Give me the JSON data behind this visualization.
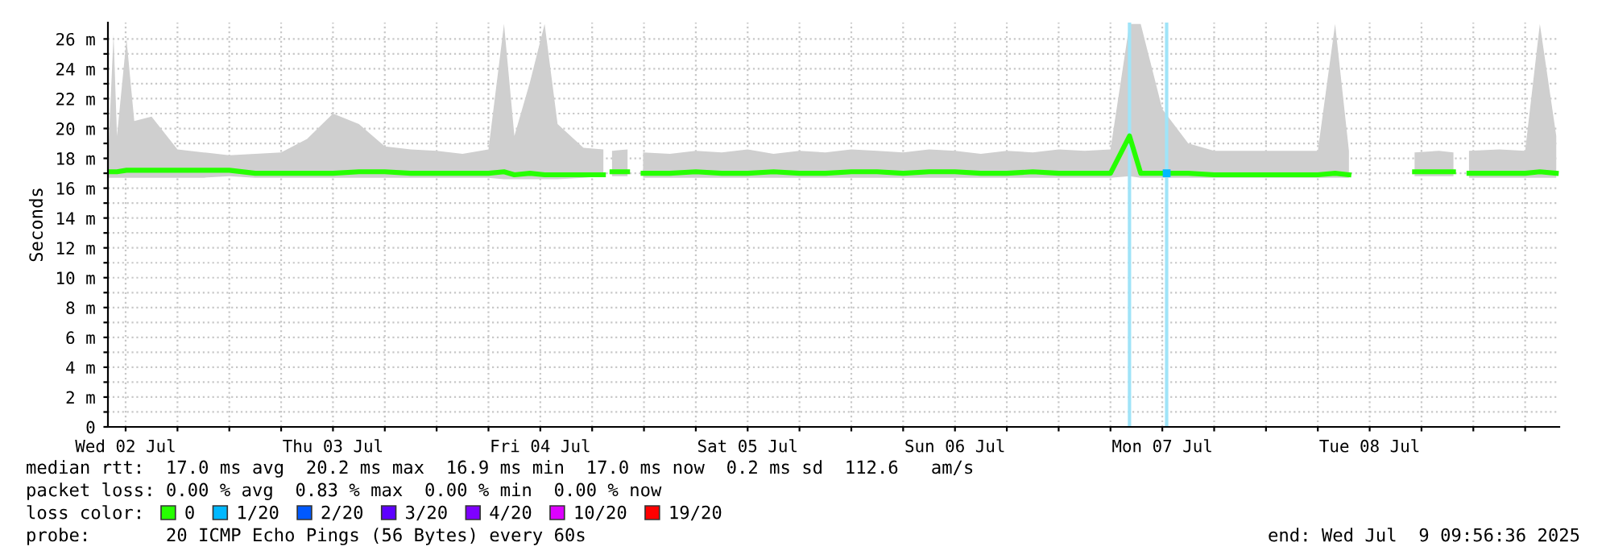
{
  "chart_data": {
    "type": "line",
    "ylabel": "Seconds",
    "xlim": [
      "2025-07-02T09:57",
      "2025-07-09T09:57"
    ],
    "ylim": [
      0,
      27.1
    ],
    "xticks": [
      {
        "value": "2025-07-02T12:00",
        "label": "Wed 02 Jul"
      },
      {
        "value": "2025-07-02T18:00",
        "label": null
      },
      {
        "value": "2025-07-03T00:00",
        "label": null
      },
      {
        "value": "2025-07-03T06:00",
        "label": null
      },
      {
        "value": "2025-07-03T12:00",
        "label": "Thu 03 Jul"
      },
      {
        "value": "2025-07-03T18:00",
        "label": null
      },
      {
        "value": "2025-07-04T00:00",
        "label": null
      },
      {
        "value": "2025-07-04T06:00",
        "label": null
      },
      {
        "value": "2025-07-04T12:00",
        "label": "Fri 04 Jul"
      },
      {
        "value": "2025-07-04T18:00",
        "label": null
      },
      {
        "value": "2025-07-05T00:00",
        "label": null
      },
      {
        "value": "2025-07-05T06:00",
        "label": null
      },
      {
        "value": "2025-07-05T12:00",
        "label": "Sat 05 Jul"
      },
      {
        "value": "2025-07-05T18:00",
        "label": null
      },
      {
        "value": "2025-07-06T00:00",
        "label": null
      },
      {
        "value": "2025-07-06T06:00",
        "label": null
      },
      {
        "value": "2025-07-06T12:00",
        "label": "Sun 06 Jul"
      },
      {
        "value": "2025-07-06T18:00",
        "label": null
      },
      {
        "value": "2025-07-07T00:00",
        "label": null
      },
      {
        "value": "2025-07-07T06:00",
        "label": null
      },
      {
        "value": "2025-07-07T12:00",
        "label": "Mon 07 Jul"
      },
      {
        "value": "2025-07-07T18:00",
        "label": null
      },
      {
        "value": "2025-07-08T00:00",
        "label": null
      },
      {
        "value": "2025-07-08T06:00",
        "label": null
      },
      {
        "value": "2025-07-08T12:00",
        "label": "Tue 08 Jul"
      },
      {
        "value": "2025-07-08T18:00",
        "label": null
      },
      {
        "value": "2025-07-09T00:00",
        "label": null
      },
      {
        "value": "2025-07-09T06:00",
        "label": null
      }
    ],
    "yticks": [
      0,
      {
        "value": 1,
        "label": null
      },
      {
        "value": 2,
        "label": "2 m"
      },
      {
        "value": 3,
        "label": null
      },
      {
        "value": 4,
        "label": "4 m"
      },
      {
        "value": 5,
        "label": null
      },
      {
        "value": 6,
        "label": "6 m"
      },
      {
        "value": 7,
        "label": null
      },
      {
        "value": 8,
        "label": "8 m"
      },
      {
        "value": 9,
        "label": null
      },
      {
        "value": 10,
        "label": "10 m"
      },
      {
        "value": 11,
        "label": null
      },
      {
        "value": 12,
        "label": "12 m"
      },
      {
        "value": 13,
        "label": null
      },
      {
        "value": 14,
        "label": "14 m"
      },
      {
        "value": 15,
        "label": null
      },
      {
        "value": 16,
        "label": "16 m"
      },
      {
        "value": 17,
        "label": null
      },
      {
        "value": 18,
        "label": "18 m"
      },
      {
        "value": 19,
        "label": null
      },
      {
        "value": 20,
        "label": "20 m"
      },
      {
        "value": 21,
        "label": null
      },
      {
        "value": 22,
        "label": "22 m"
      },
      {
        "value": 23,
        "label": null
      },
      {
        "value": 24,
        "label": "24 m"
      },
      {
        "value": 25,
        "label": null
      },
      {
        "value": 26,
        "label": "26 m"
      }
    ],
    "grid": true,
    "legend": "bottom",
    "legend_title": "loss color:",
    "series": [
      {
        "name": "0",
        "color": "#26ff00",
        "x": [
          "2025-07-02T10:00",
          "2025-07-02T10:36",
          "2025-07-02T11:00",
          "2025-07-02T12:06",
          "2025-07-02T13:00",
          "2025-07-02T15:00",
          "2025-07-02T18:00",
          "2025-07-02T21:00",
          "2025-07-03T00:00",
          "2025-07-03T03:00",
          "2025-07-03T06:00",
          "2025-07-03T09:00",
          "2025-07-03T12:00",
          "2025-07-03T15:00",
          "2025-07-03T18:00",
          "2025-07-03T21:00",
          "2025-07-04T00:00",
          "2025-07-04T03:00",
          "2025-07-04T06:00",
          "2025-07-04T07:48",
          "2025-07-04T09:00",
          "2025-07-04T10:48",
          "2025-07-04T12:30",
          "2025-07-04T14:00",
          "2025-07-04T17:00",
          "2025-07-04T19:18",
          "2025-07-04T19:48",
          "2025-07-04T20:18",
          "2025-07-04T22:06",
          "2025-07-04T23:00",
          "2025-07-04T23:54",
          "2025-07-05T03:00",
          "2025-07-05T06:00",
          "2025-07-05T09:00",
          "2025-07-05T12:00",
          "2025-07-05T15:00",
          "2025-07-05T18:00",
          "2025-07-05T21:00",
          "2025-07-06T00:00",
          "2025-07-06T03:00",
          "2025-07-06T06:00",
          "2025-07-06T09:00",
          "2025-07-06T12:00",
          "2025-07-06T15:00",
          "2025-07-06T18:00",
          "2025-07-06T21:00",
          "2025-07-07T00:00",
          "2025-07-07T03:00",
          "2025-07-07T06:00",
          "2025-07-07T08:12",
          "2025-07-07T09:30",
          "2025-07-07T12:00",
          "2025-07-07T15:00",
          "2025-07-07T18:00",
          "2025-07-07T21:00",
          "2025-07-08T00:00",
          "2025-07-08T03:00",
          "2025-07-08T06:00",
          "2025-07-08T08:00",
          "2025-07-08T09:36",
          "2025-07-08T13:00",
          "2025-07-08T17:12",
          "2025-07-08T20:00",
          "2025-07-08T21:42",
          "2025-07-08T22:36",
          "2025-07-08T23:30",
          "2025-07-09T03:00",
          "2025-07-09T06:00",
          "2025-07-09T07:42",
          "2025-07-09T09:36"
        ],
        "values": [
          17.1,
          17.1,
          17.1,
          17.2,
          17.2,
          17.2,
          17.2,
          17.2,
          17.2,
          17.0,
          17.0,
          17.0,
          17.0,
          17.1,
          17.1,
          17.0,
          17.0,
          17.0,
          17.0,
          17.1,
          16.9,
          17.0,
          16.9,
          16.9,
          16.9,
          16.9,
          null,
          17.1,
          17.1,
          null,
          17.0,
          17.0,
          17.1,
          17.0,
          17.0,
          17.1,
          17.0,
          17.0,
          17.1,
          17.1,
          17.0,
          17.1,
          17.1,
          17.0,
          17.0,
          17.1,
          17.0,
          17.0,
          17.0,
          19.5,
          17.0,
          17.0,
          17.0,
          16.9,
          16.9,
          16.9,
          16.9,
          16.9,
          17.0,
          16.9,
          null,
          17.1,
          17.1,
          17.1,
          null,
          17.0,
          17.0,
          17.0,
          17.1,
          17.0
        ],
        "lower": [
          16.7,
          16.7,
          16.7,
          16.7,
          16.7,
          16.7,
          16.7,
          16.7,
          16.8,
          16.7,
          16.7,
          16.7,
          16.7,
          16.7,
          16.7,
          16.7,
          16.7,
          16.7,
          16.7,
          16.6,
          16.6,
          16.6,
          16.6,
          16.6,
          16.7,
          16.8,
          null,
          16.8,
          16.8,
          null,
          16.7,
          16.7,
          16.7,
          16.7,
          16.7,
          16.7,
          16.7,
          16.7,
          16.7,
          16.7,
          16.7,
          16.7,
          16.7,
          16.7,
          16.7,
          16.7,
          16.7,
          16.7,
          16.7,
          16.8,
          16.7,
          16.7,
          16.7,
          16.7,
          16.7,
          16.7,
          16.7,
          16.7,
          16.7,
          16.7,
          null,
          16.8,
          16.8,
          16.8,
          null,
          16.7,
          16.7,
          16.7,
          16.7,
          16.7
        ],
        "upper": [
          18.5,
          26.3,
          19.5,
          26.0,
          20.5,
          20.8,
          18.6,
          18.4,
          18.2,
          18.3,
          18.4,
          19.3,
          21.0,
          20.3,
          18.8,
          18.6,
          18.5,
          18.3,
          18.6,
          27.0,
          19.5,
          23.1,
          27.0,
          20.3,
          18.7,
          18.6,
          null,
          18.5,
          18.6,
          null,
          18.4,
          18.3,
          18.5,
          18.4,
          18.6,
          18.3,
          18.5,
          18.4,
          18.6,
          18.5,
          18.4,
          18.6,
          18.5,
          18.3,
          18.5,
          18.4,
          18.6,
          18.5,
          18.6,
          27.0,
          27.0,
          21.3,
          19.0,
          18.5,
          18.5,
          18.5,
          18.5,
          18.5,
          27.0,
          18.5,
          null,
          18.4,
          18.5,
          18.4,
          null,
          18.5,
          18.6,
          18.5,
          27.0,
          19.5
        ]
      },
      {
        "name": "1/20",
        "color": "#00b8ff",
        "marker": "square",
        "x": [
          "2025-07-07T12:30"
        ],
        "values": [
          17.0
        ]
      },
      {
        "name": "2/20",
        "color": "#0059ff"
      },
      {
        "name": "3/20",
        "color": "#5e00ff"
      },
      {
        "name": "4/20",
        "color": "#7e00ff"
      },
      {
        "name": "10/20",
        "color": "#dd00ff"
      },
      {
        "name": "19/20",
        "color": "#ff0000"
      }
    ],
    "ref_lines": [
      {
        "axis": "x",
        "value": "2025-07-07T08:12",
        "color": "#a0e4f8"
      },
      {
        "axis": "x",
        "value": "2025-07-07T12:30",
        "color": "#a0e4f8"
      }
    ],
    "annotations": [
      "median rtt:  17.0 ms avg  20.2 ms max  16.9 ms min  17.0 ms now  0.2 ms sd  112.6   am/s",
      "packet loss: 0.00 % avg  0.83 % max  0.00 % min  0.00 % now",
      "probe:       20 ICMP Echo Pings (56 Bytes) every 60s",
      "end: Wed Jul  9 09:56:36 2025"
    ]
  }
}
